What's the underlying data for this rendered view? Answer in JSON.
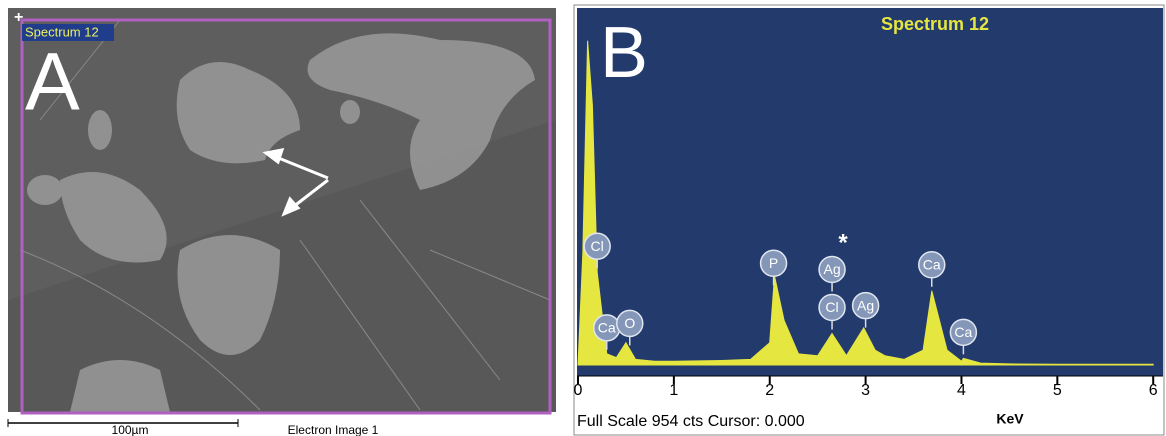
{
  "panel_a": {
    "letter": "A",
    "spectrum_label": "Spectrum 12",
    "scale_bar": "100µm",
    "image_label": "Electron Image 1"
  },
  "chart_data": {
    "type": "area",
    "panel_letter": "B",
    "title": "Spectrum 12",
    "color": "#e6e640",
    "x": [
      0,
      0.05,
      0.1,
      0.15,
      0.2,
      0.3,
      0.4,
      0.5,
      0.6,
      0.8,
      1.0,
      1.5,
      1.8,
      2.0,
      2.05,
      2.15,
      2.3,
      2.5,
      2.65,
      2.8,
      2.98,
      3.1,
      3.2,
      3.4,
      3.6,
      3.69,
      3.85,
      4.0,
      4.02,
      4.2,
      4.5,
      5,
      6
    ],
    "values": [
      0,
      300,
      874,
      700,
      250,
      30,
      20,
      60,
      15,
      10,
      10,
      12,
      15,
      60,
      240,
      120,
      30,
      25,
      85,
      25,
      100,
      40,
      25,
      15,
      40,
      200,
      40,
      10,
      18,
      5,
      3,
      2,
      2
    ],
    "xlim": [
      0,
      6.05
    ],
    "xticks": [
      0,
      1,
      2,
      3,
      4,
      5,
      6
    ],
    "ylim": [
      0,
      954
    ],
    "x_label": "KeV",
    "footer": "Full Scale 954 cts Cursor: 0.000",
    "annotation": "*",
    "peak_labels": [
      {
        "label": "Cl",
        "x": 0.2
      },
      {
        "label": "Ca",
        "x": 0.3
      },
      {
        "label": "O",
        "x": 0.54
      },
      {
        "label": "P",
        "x": 2.04
      },
      {
        "label": "Cl",
        "x": 2.65
      },
      {
        "label": "Ag",
        "x": 2.65
      },
      {
        "label": "Ag",
        "x": 3.0
      },
      {
        "label": "Ca",
        "x": 3.69
      },
      {
        "label": "Ca",
        "x": 4.02
      }
    ]
  }
}
